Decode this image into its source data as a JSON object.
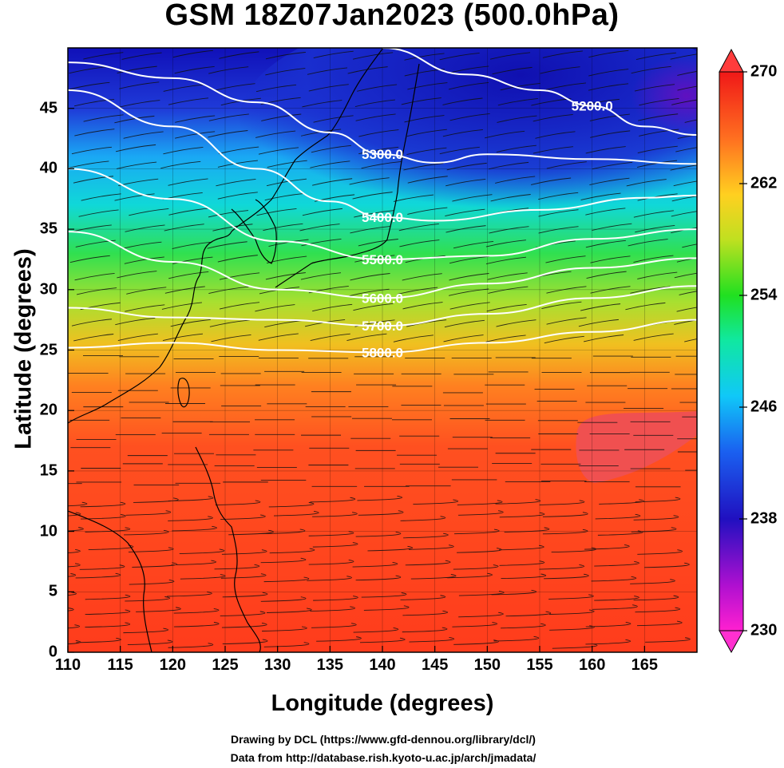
{
  "title": "GSM 18Z07Jan2023 (500.0hPa)",
  "axes": {
    "xlabel": "Longitude (degrees)",
    "ylabel": "Latitude  (degrees)",
    "xticks": [
      "110",
      "115",
      "120",
      "125",
      "130",
      "135",
      "140",
      "145",
      "150",
      "155",
      "160",
      "165"
    ],
    "yticks": [
      "0",
      "5",
      "10",
      "15",
      "20",
      "25",
      "30",
      "35",
      "40",
      "45"
    ],
    "xlim": [
      110,
      170
    ],
    "ylim": [
      0,
      50
    ]
  },
  "colorbar": {
    "ticks": [
      "230",
      "238",
      "246",
      "254",
      "262",
      "270"
    ],
    "range": [
      230,
      270
    ],
    "colors": [
      "#ff22cc",
      "#8a10d0",
      "#1f1fc8",
      "#1a6cf0",
      "#10d0f0",
      "#10e860",
      "#70e020",
      "#f0e020",
      "#ff9020",
      "#ff3020",
      "#f01818"
    ]
  },
  "contours": [
    {
      "label": "5200.0",
      "lat_at_lon": [
        [
          140,
          50
        ],
        [
          148,
          47.8
        ],
        [
          155,
          46.5
        ],
        [
          160,
          45.2
        ],
        [
          165,
          43.5
        ],
        [
          170,
          42.8
        ]
      ]
    },
    {
      "label": "5300.0",
      "lat_at_lon": [
        [
          110,
          48.8
        ],
        [
          120,
          47.5
        ],
        [
          128,
          45.5
        ],
        [
          135,
          43.0
        ],
        [
          140,
          41.2
        ],
        [
          145,
          40.5
        ],
        [
          150,
          41.2
        ],
        [
          160,
          40.8
        ],
        [
          170,
          40.4
        ]
      ]
    },
    {
      "label": "5400.0",
      "lat_at_lon": [
        [
          110,
          46.5
        ],
        [
          120,
          43.5
        ],
        [
          128,
          40.0
        ],
        [
          135,
          37.3
        ],
        [
          140,
          36.0
        ],
        [
          145,
          35.7
        ],
        [
          155,
          36.6
        ],
        [
          165,
          37.6
        ],
        [
          170,
          37.8
        ]
      ]
    },
    {
      "label": "5500.0",
      "lat_at_lon": [
        [
          110,
          40.0
        ],
        [
          120,
          37.5
        ],
        [
          130,
          34.0
        ],
        [
          140,
          32.5
        ],
        [
          150,
          32.8
        ],
        [
          160,
          34.2
        ],
        [
          170,
          35.0
        ]
      ]
    },
    {
      "label": "5600.0",
      "lat_at_lon": [
        [
          110,
          34.8
        ],
        [
          120,
          32.3
        ],
        [
          130,
          30.0
        ],
        [
          140,
          29.3
        ],
        [
          150,
          30.5
        ],
        [
          160,
          31.8
        ],
        [
          170,
          32.6
        ]
      ]
    },
    {
      "label": "5700.0",
      "lat_at_lon": [
        [
          110,
          28.5
        ],
        [
          120,
          27.7
        ],
        [
          130,
          27.5
        ],
        [
          140,
          27.0
        ],
        [
          150,
          28.0
        ],
        [
          160,
          29.3
        ],
        [
          170,
          30.3
        ]
      ]
    },
    {
      "label": "5800.0",
      "lat_at_lon": [
        [
          110,
          25.2
        ],
        [
          120,
          25.6
        ],
        [
          130,
          25.0
        ],
        [
          140,
          24.8
        ],
        [
          150,
          25.6
        ],
        [
          160,
          26.5
        ],
        [
          170,
          27.5
        ]
      ]
    }
  ]
}
